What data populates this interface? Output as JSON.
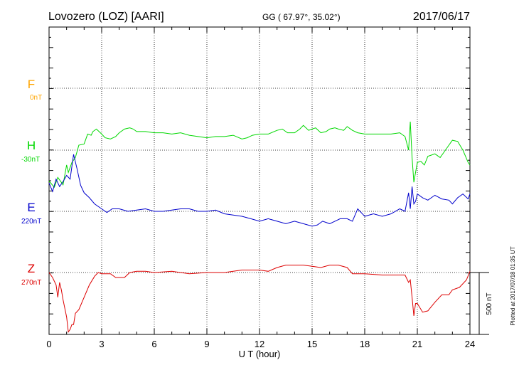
{
  "header": {
    "station": "Lovozero (LOZ)  [AARI]",
    "coords": "GG ( 67.97°,  35.02°)",
    "date": "2017/06/17"
  },
  "footer": {
    "plotted": "Plotted at 2017/07/18 01:35 UT",
    "scale_label": "500 nT"
  },
  "colors": {
    "F": "#ffa500",
    "H": "#00d800",
    "E": "#0000cc",
    "Z": "#dd0000"
  },
  "chart_data": {
    "type": "line",
    "title": "Lovozero (LOZ)  [AARI]",
    "xlabel": "U T (hour)",
    "ylabel": "",
    "xlim": [
      0,
      24
    ],
    "x_ticks": [
      "0",
      "3",
      "6",
      "9",
      "12",
      "15",
      "18",
      "21",
      "24"
    ],
    "grid": true,
    "scale_bar_nT": 500,
    "y_unit": "nT relative to channel baseline",
    "series": [
      {
        "name": "F",
        "baseline": "0nT",
        "x": [],
        "y": []
      },
      {
        "name": "H",
        "baseline": "-30nT",
        "x": [
          0,
          0.3,
          0.5,
          0.8,
          1.0,
          1.1,
          1.3,
          1.5,
          1.7,
          2.0,
          2.2,
          2.4,
          2.5,
          2.7,
          3.0,
          3.2,
          3.5,
          3.8,
          4.0,
          4.3,
          4.6,
          4.8,
          5.0,
          5.5,
          6.0,
          6.5,
          7.0,
          7.5,
          8.0,
          8.5,
          9.0,
          9.5,
          10.0,
          10.5,
          11.0,
          11.3,
          11.6,
          12.0,
          12.5,
          13.0,
          13.3,
          13.6,
          14.0,
          14.3,
          14.5,
          14.8,
          15.0,
          15.2,
          15.5,
          15.8,
          16.0,
          16.3,
          16.5,
          16.8,
          17.0,
          17.3,
          17.6,
          18.0,
          18.5,
          19.0,
          19.5,
          20.0,
          20.3,
          20.5,
          20.6,
          20.7,
          20.8,
          20.9,
          21.0,
          21.2,
          21.4,
          21.6,
          21.8,
          22.0,
          22.3,
          22.5,
          22.8,
          23.0,
          23.3,
          23.6,
          23.9,
          24.0
        ],
        "y": [
          -250,
          -300,
          -220,
          -280,
          -120,
          -180,
          -100,
          -60,
          40,
          50,
          130,
          120,
          150,
          170,
          130,
          100,
          90,
          110,
          140,
          170,
          180,
          170,
          150,
          150,
          140,
          140,
          130,
          140,
          120,
          110,
          100,
          110,
          110,
          120,
          90,
          100,
          120,
          130,
          130,
          160,
          170,
          140,
          140,
          170,
          200,
          160,
          170,
          180,
          140,
          150,
          170,
          180,
          170,
          160,
          190,
          160,
          140,
          130,
          130,
          130,
          130,
          140,
          110,
          0,
          230,
          -60,
          -260,
          -180,
          -100,
          -90,
          -120,
          -50,
          -40,
          -30,
          -60,
          -20,
          40,
          80,
          70,
          0,
          -100,
          -120
        ]
      },
      {
        "name": "E",
        "baseline": "220nT",
        "x": [
          0,
          0.2,
          0.4,
          0.6,
          0.8,
          1.0,
          1.2,
          1.4,
          1.6,
          1.8,
          2.0,
          2.3,
          2.6,
          3.0,
          3.3,
          3.6,
          4.0,
          4.5,
          5.0,
          5.5,
          6.0,
          6.5,
          7.0,
          7.5,
          8.0,
          8.5,
          9.0,
          9.5,
          10.0,
          10.5,
          11.0,
          11.5,
          12.0,
          12.5,
          13.0,
          13.5,
          14.0,
          14.5,
          15.0,
          15.3,
          15.6,
          16.0,
          16.3,
          16.6,
          17.0,
          17.3,
          17.6,
          18.0,
          18.5,
          19.0,
          19.5,
          20.0,
          20.3,
          20.5,
          20.6,
          20.7,
          20.8,
          20.9,
          21.0,
          21.3,
          21.6,
          22.0,
          22.4,
          22.8,
          23.0,
          23.3,
          23.6,
          23.9,
          24.0
        ],
        "y": [
          230,
          160,
          260,
          200,
          240,
          290,
          260,
          460,
          340,
          210,
          150,
          110,
          60,
          20,
          -10,
          20,
          20,
          0,
          10,
          20,
          0,
          0,
          10,
          20,
          20,
          0,
          0,
          10,
          -20,
          -30,
          -40,
          -60,
          -80,
          -60,
          -80,
          -100,
          -80,
          -100,
          -120,
          -110,
          -80,
          -100,
          -80,
          -60,
          -60,
          -80,
          20,
          -40,
          -20,
          -40,
          -20,
          20,
          0,
          150,
          20,
          200,
          60,
          80,
          140,
          110,
          90,
          130,
          100,
          90,
          60,
          110,
          140,
          100,
          140
        ]
      },
      {
        "name": "Z",
        "baseline": "270nT",
        "x": [
          0,
          0.2,
          0.4,
          0.5,
          0.6,
          0.7,
          0.8,
          1.0,
          1.1,
          1.2,
          1.3,
          1.4,
          1.5,
          1.7,
          2.0,
          2.3,
          2.6,
          2.8,
          3.0,
          3.2,
          3.5,
          3.8,
          4.0,
          4.3,
          4.6,
          5.0,
          5.5,
          6.0,
          7.0,
          8.0,
          9.0,
          10.0,
          11.0,
          12.0,
          12.5,
          13.0,
          13.5,
          14.0,
          14.5,
          15.0,
          15.5,
          16.0,
          16.5,
          17.0,
          17.3,
          18.0,
          19.0,
          20.0,
          20.3,
          20.5,
          20.6,
          20.7,
          20.8,
          20.9,
          21.0,
          21.3,
          21.6,
          22.0,
          22.4,
          22.8,
          23.0,
          23.4,
          23.8,
          24.0
        ],
        "y": [
          0,
          -40,
          -100,
          -200,
          -80,
          -140,
          -220,
          -360,
          -480,
          -460,
          -420,
          -420,
          -330,
          -300,
          -200,
          -100,
          -30,
          0,
          -10,
          -10,
          -10,
          -40,
          -40,
          -40,
          0,
          10,
          10,
          0,
          10,
          -10,
          0,
          0,
          20,
          20,
          10,
          40,
          60,
          60,
          60,
          50,
          40,
          60,
          60,
          40,
          -10,
          -10,
          -20,
          -20,
          -20,
          -80,
          -60,
          -200,
          -350,
          -250,
          -250,
          -320,
          -310,
          -240,
          -180,
          -180,
          -140,
          -120,
          -60,
          10
        ]
      }
    ]
  }
}
